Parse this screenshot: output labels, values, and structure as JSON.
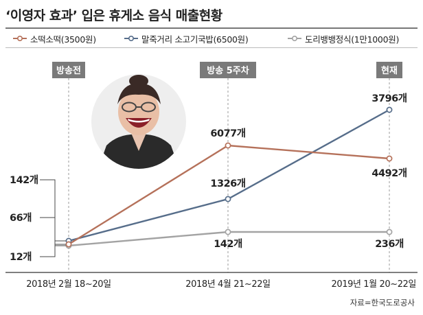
{
  "title": "‘이영자 효과’ 입은 휴게소 음식 매출현황",
  "source": "자료=한국도로공사",
  "colors": {
    "s1": "#b5715a",
    "s2": "#566d8a",
    "s3": "#a3a3a3",
    "tag_bg": "#7a7a7a"
  },
  "photo": {
    "icon": "laughing-woman-photo"
  },
  "chart_data": {
    "type": "line",
    "title": "‘이영자 효과’ 입은 휴게소 음식 매출현황",
    "x": [
      "2018년 2월 18~20일",
      "2018년 4월 21~22일",
      "2019년 1월 20~22일"
    ],
    "period_tags": [
      "방송전",
      "방송 5주차",
      "현재"
    ],
    "unit": "개",
    "series": [
      {
        "name": "소떡소떡(3500원)",
        "values": [
          12,
          6077,
          4492
        ],
        "labels": [
          "12개",
          "6077개",
          "4492개"
        ]
      },
      {
        "name": "말죽거리 소고기국밥(6500원)",
        "values": [
          142,
          1326,
          3796
        ],
        "labels": [
          "142개",
          "1326개",
          "3796개"
        ]
      },
      {
        "name": "도리뱅뱅정식(1만1000원)",
        "values": [
          66,
          142,
          236
        ],
        "labels": [
          "66개",
          "142개",
          "236개"
        ]
      }
    ],
    "grid": false
  }
}
